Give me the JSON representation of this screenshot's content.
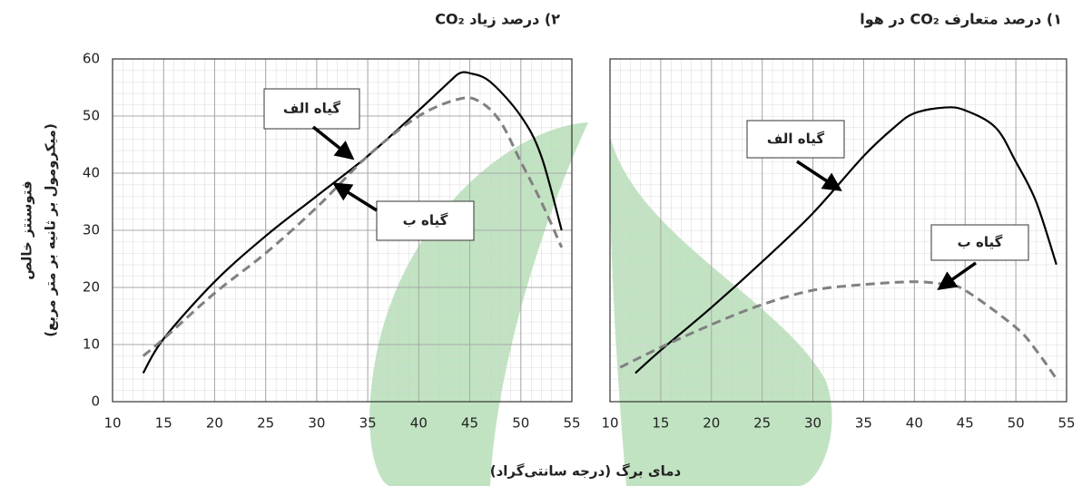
{
  "ylabel": [
    "فتوسنتز خالص",
    "(میکرومول بر ثانیه بر متر مربع)"
  ],
  "xlabel": "دمای برگ (درجه سانتی‌گراد)",
  "chart_data": [
    {
      "type": "line",
      "title": "۲) درصد زیاد CO₂",
      "xlim": [
        10,
        55
      ],
      "xticks": [
        10,
        15,
        20,
        25,
        30,
        35,
        40,
        45,
        50,
        55
      ],
      "ylim": [
        0,
        60
      ],
      "yticks": [
        0,
        10,
        20,
        30,
        40,
        50,
        60
      ],
      "grid": true,
      "series": [
        {
          "name": "گیاه الف",
          "color": "#000000",
          "dash": "solid",
          "x": [
            13,
            15,
            20,
            25,
            30,
            35,
            40,
            43,
            44,
            45,
            47,
            50,
            52,
            54
          ],
          "values": [
            5,
            11,
            21,
            29,
            36,
            43,
            51,
            56,
            57.5,
            57.5,
            56,
            50,
            43,
            30
          ]
        },
        {
          "name": "گیاه ب",
          "color": "#808080",
          "dash": "dashed",
          "x": [
            13,
            15,
            20,
            25,
            30,
            35,
            40,
            44,
            46,
            48,
            50,
            52,
            54
          ],
          "values": [
            8,
            11,
            19,
            26,
            34,
            43,
            50,
            53,
            52.5,
            49,
            42,
            35,
            27
          ]
        }
      ]
    },
    {
      "type": "line",
      "title": "۱) درصد متعارف CO₂ در هوا",
      "xlim": [
        10,
        55
      ],
      "xticks": [
        10,
        15,
        20,
        25,
        30,
        35,
        40,
        45,
        50,
        55
      ],
      "ylim": [
        0,
        60
      ],
      "grid": true,
      "series": [
        {
          "name": "گیاه الف",
          "color": "#000000",
          "dash": "solid",
          "x": [
            12.5,
            15,
            20,
            25,
            30,
            35,
            38,
            40,
            43,
            45,
            48,
            50,
            52,
            54
          ],
          "values": [
            5,
            9,
            16.5,
            24.5,
            33,
            43,
            48,
            50.5,
            51.5,
            51,
            48,
            42,
            35,
            24
          ]
        },
        {
          "name": "گیاه ب",
          "color": "#808080",
          "dash": "dashed",
          "x": [
            11,
            15,
            20,
            25,
            30,
            35,
            40,
            43,
            45,
            50,
            52,
            54
          ],
          "values": [
            6,
            9.5,
            13.5,
            17,
            19.5,
            20.5,
            21,
            20.5,
            19.5,
            13,
            9,
            4
          ]
        }
      ]
    }
  ]
}
